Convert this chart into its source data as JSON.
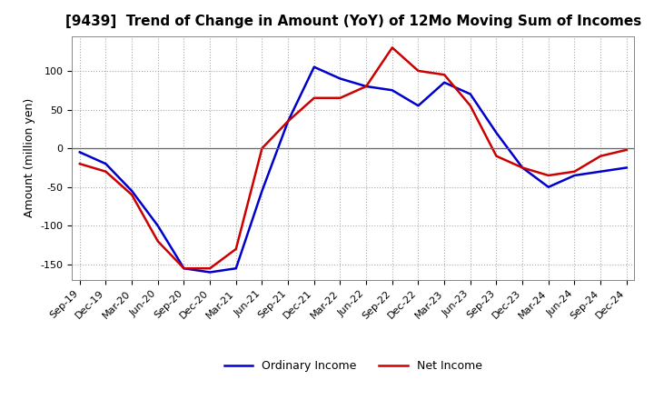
{
  "title": "[9439]  Trend of Change in Amount (YoY) of 12Mo Moving Sum of Incomes",
  "ylabel": "Amount (million yen)",
  "ylim": [
    -170,
    145
  ],
  "yticks": [
    -150,
    -100,
    -50,
    0,
    50,
    100
  ],
  "background_color": "#ffffff",
  "plot_bg_color": "#ffffff",
  "grid_color": "#aaaaaa",
  "ordinary_income_color": "#0000cc",
  "net_income_color": "#cc0000",
  "x_labels": [
    "Sep-19",
    "Dec-19",
    "Mar-20",
    "Jun-20",
    "Sep-20",
    "Dec-20",
    "Mar-21",
    "Jun-21",
    "Sep-21",
    "Dec-21",
    "Mar-22",
    "Jun-22",
    "Sep-22",
    "Dec-22",
    "Mar-23",
    "Jun-23",
    "Sep-23",
    "Dec-23",
    "Mar-24",
    "Jun-24",
    "Sep-24",
    "Dec-24"
  ],
  "ordinary_income": [
    -5,
    -20,
    -55,
    -100,
    -155,
    -160,
    -155,
    -55,
    35,
    105,
    90,
    80,
    75,
    55,
    85,
    70,
    20,
    -25,
    -50,
    -35,
    -30,
    -25
  ],
  "net_income": [
    -20,
    -30,
    -60,
    -120,
    -155,
    -155,
    -130,
    0,
    35,
    65,
    65,
    80,
    130,
    100,
    95,
    55,
    -10,
    -25,
    -35,
    -30,
    -10,
    -2
  ],
  "title_fontsize": 11,
  "axis_fontsize": 9,
  "tick_fontsize": 8,
  "legend_fontsize": 9,
  "linewidth": 1.8
}
